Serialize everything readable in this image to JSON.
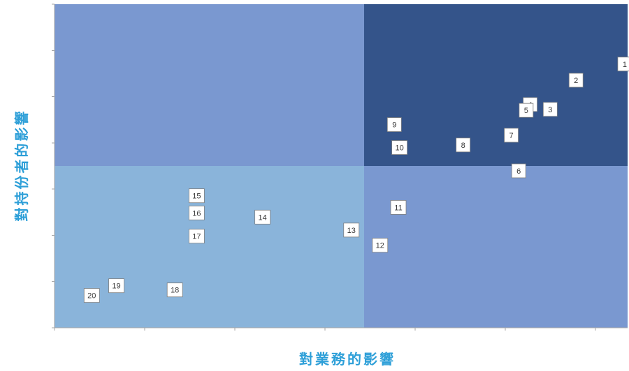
{
  "chart_data": {
    "type": "scatter",
    "title": "",
    "xlabel": "對業務的影響",
    "ylabel": "對持份者的影響",
    "xlim": [
      0,
      1
    ],
    "ylim": [
      0,
      1
    ],
    "grid": false,
    "quadrant_split": {
      "x": 0.54,
      "y": 0.5
    },
    "quadrant_colors": {
      "top_left": "#7a98d0",
      "top_right": "#34548a",
      "bottom_left": "#8ab4da",
      "bottom_right": "#7a98d0"
    },
    "label_box_color": "#ffffff",
    "axis_title_color": "#2d9fd8",
    "points": [
      {
        "label": "1",
        "x": 0.995,
        "y": 0.815
      },
      {
        "label": "2",
        "x": 0.91,
        "y": 0.765
      },
      {
        "label": "3",
        "x": 0.865,
        "y": 0.675
      },
      {
        "label": "4",
        "x": 0.83,
        "y": 0.69
      },
      {
        "label": "5",
        "x": 0.823,
        "y": 0.672
      },
      {
        "label": "6",
        "x": 0.81,
        "y": 0.485
      },
      {
        "label": "7",
        "x": 0.797,
        "y": 0.595
      },
      {
        "label": "8",
        "x": 0.713,
        "y": 0.565
      },
      {
        "label": "9",
        "x": 0.593,
        "y": 0.628
      },
      {
        "label": "10",
        "x": 0.602,
        "y": 0.557
      },
      {
        "label": "11",
        "x": 0.6,
        "y": 0.372
      },
      {
        "label": "12",
        "x": 0.568,
        "y": 0.255
      },
      {
        "label": "13",
        "x": 0.518,
        "y": 0.302
      },
      {
        "label": "14",
        "x": 0.363,
        "y": 0.342
      },
      {
        "label": "15",
        "x": 0.248,
        "y": 0.408
      },
      {
        "label": "16",
        "x": 0.248,
        "y": 0.355
      },
      {
        "label": "17",
        "x": 0.248,
        "y": 0.283
      },
      {
        "label": "18",
        "x": 0.21,
        "y": 0.117
      },
      {
        "label": "19",
        "x": 0.108,
        "y": 0.13
      },
      {
        "label": "20",
        "x": 0.065,
        "y": 0.1
      }
    ]
  }
}
